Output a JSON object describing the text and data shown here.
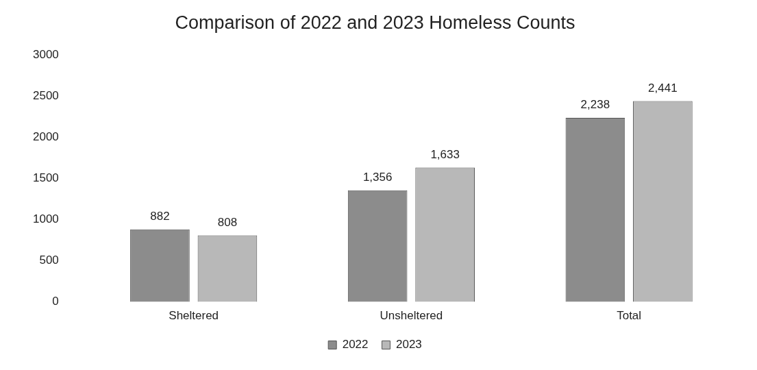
{
  "chart_data": {
    "type": "bar",
    "title": "Comparison of 2022 and 2023 Homeless Counts",
    "categories": [
      "Sheltered",
      "Unsheltered",
      "Total"
    ],
    "series": [
      {
        "name": "2022",
        "color": "#8c8c8c",
        "values": [
          882,
          1356,
          2238
        ],
        "value_labels": [
          "882",
          "1,356",
          "2,238"
        ]
      },
      {
        "name": "2023",
        "color": "#b8b8b8",
        "values": [
          808,
          1633,
          2441
        ],
        "value_labels": [
          "808",
          "1,633",
          "2,441"
        ]
      }
    ],
    "ylim": [
      0,
      3000
    ],
    "yticks": [
      0,
      500,
      1000,
      1500,
      2000,
      2500,
      3000
    ],
    "legend": "bottom"
  }
}
